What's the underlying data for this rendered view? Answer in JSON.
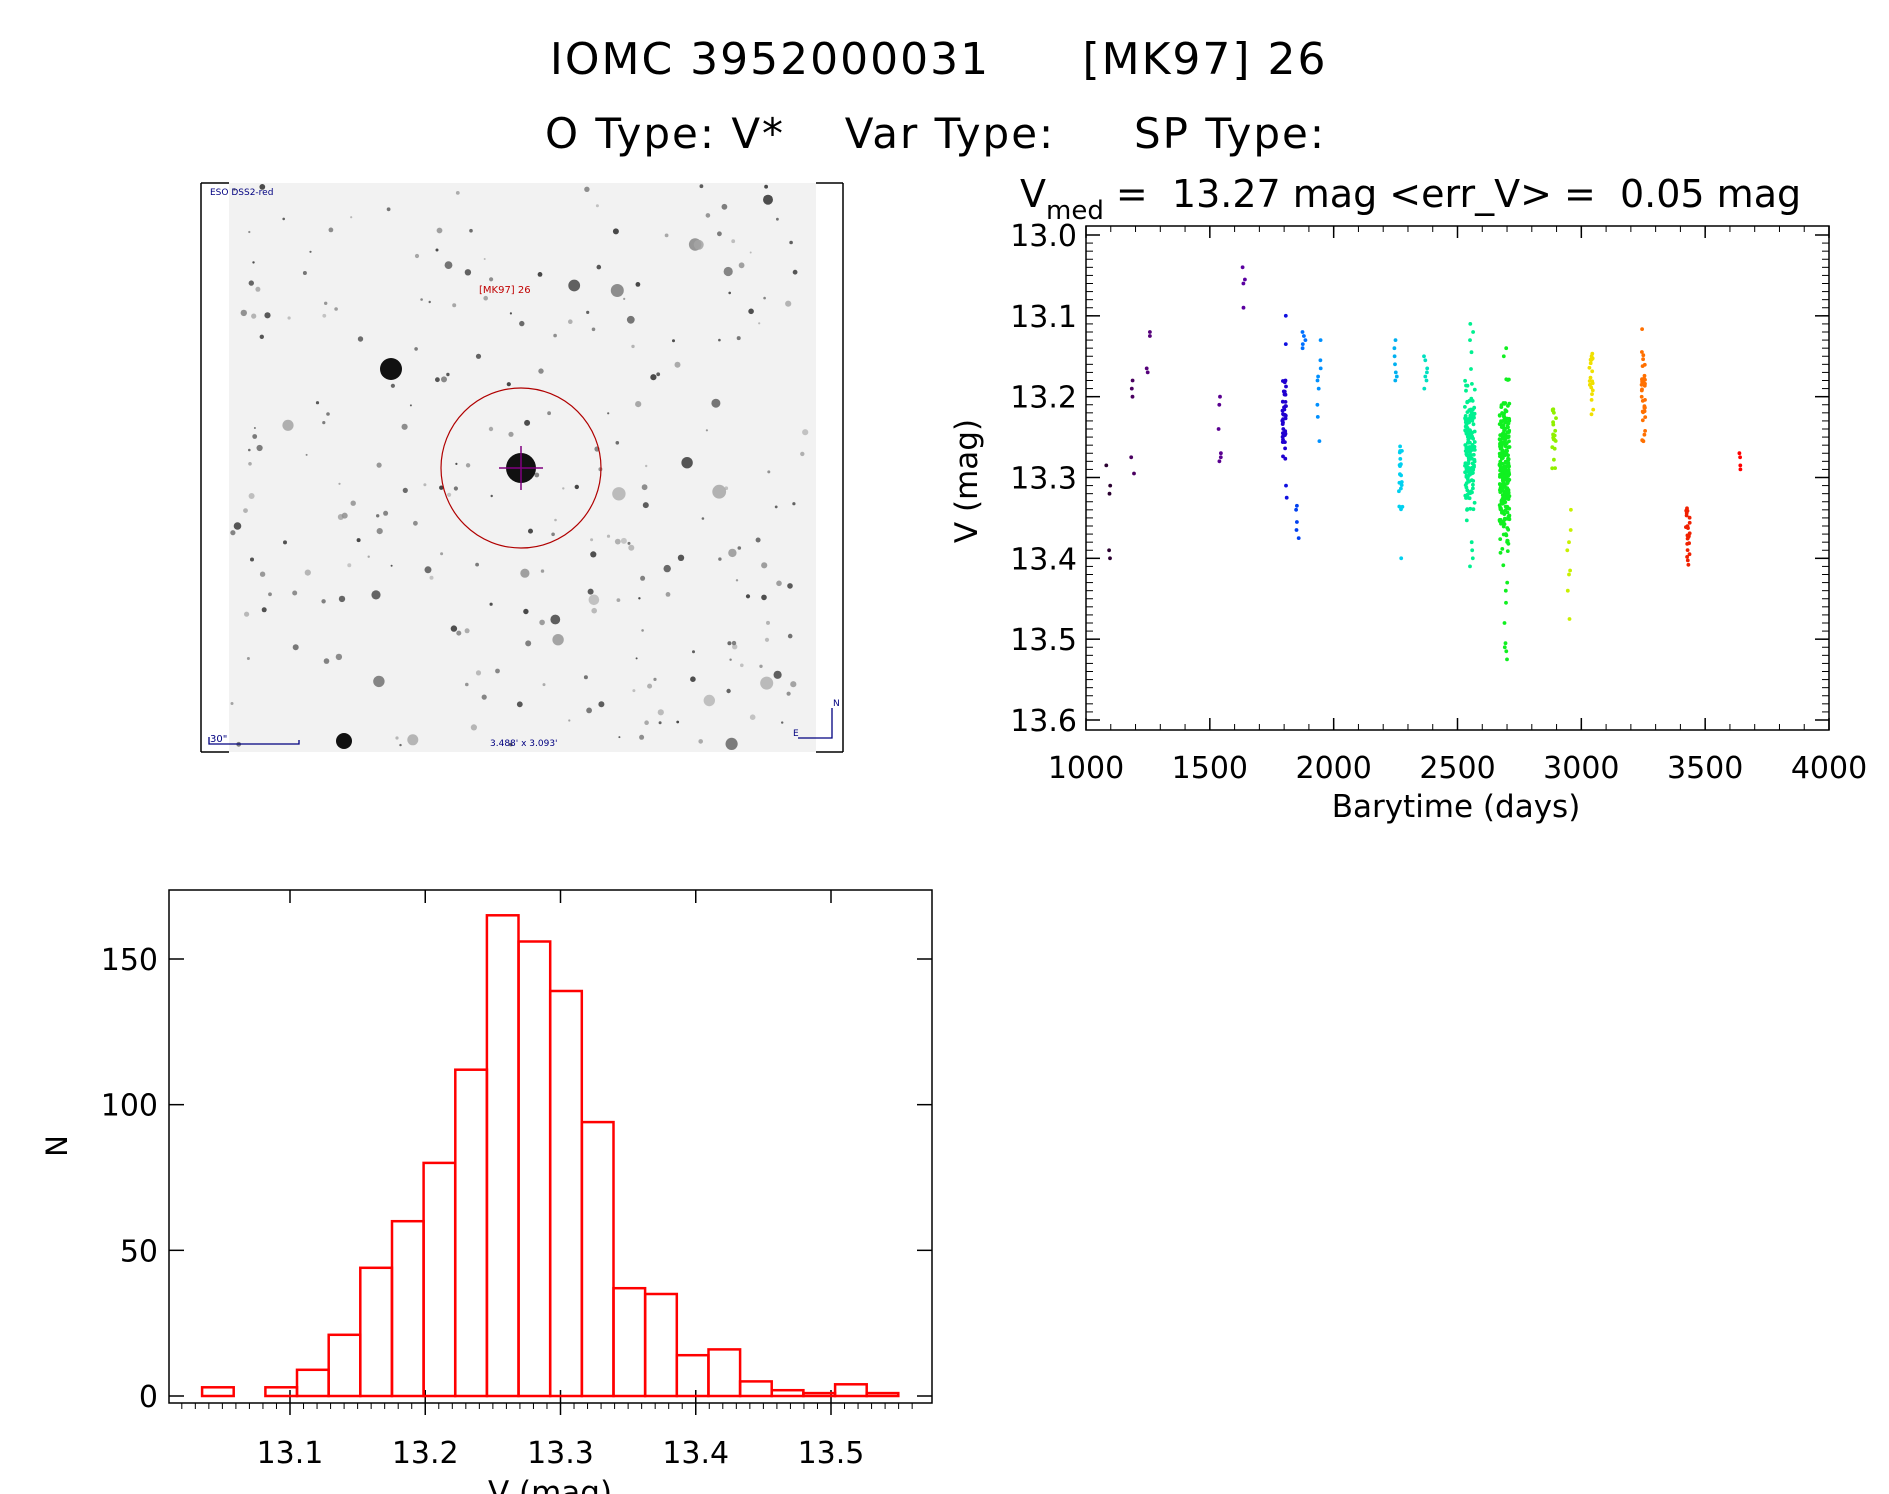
{
  "header": {
    "title_id": "IOMC 3952000031",
    "title_alias": "[MK97] 26",
    "otype": "O Type: V*",
    "vartype": "Var Type:",
    "sptype": "SP Type:"
  },
  "image_panel": {
    "survey": "ESO DSS2-red",
    "target_label": "[MK97] 26",
    "scale_label": "30\"",
    "fov_label": "3.488' x 3.093'",
    "north": "N",
    "east": "E",
    "colors": {
      "circle": "#b00000",
      "cross": "#800080",
      "text": "#000080"
    }
  },
  "chart_data": [
    {
      "type": "scatter",
      "title_prefix": "V",
      "title_sub": "med",
      "title_rest": " =  13.27 mag <err_V> =  0.05 mag",
      "xlabel": "Barytime (days)",
      "ylabel": "V (mag)",
      "xlim": [
        1000,
        4000
      ],
      "ylim": [
        13.6,
        13.0
      ],
      "xticks": [
        "1000",
        "1500",
        "2000",
        "2500",
        "3000",
        "3500",
        "4000"
      ],
      "yticks": [
        "13.0",
        "13.1",
        "13.2",
        "13.3",
        "13.4",
        "13.5",
        "13.6"
      ],
      "clusters": [
        {
          "x": 1090,
          "color": "#2a0030",
          "y": [
            13.285,
            13.31,
            13.32,
            13.39,
            13.4
          ]
        },
        {
          "x": 1190,
          "color": "#4a0060",
          "y": [
            13.18,
            13.19,
            13.2,
            13.275,
            13.295
          ]
        },
        {
          "x": 1250,
          "color": "#55007a",
          "y": [
            13.12,
            13.125,
            13.165,
            13.17
          ]
        },
        {
          "x": 1540,
          "color": "#5a0090",
          "y": [
            13.2,
            13.21,
            13.24,
            13.27,
            13.275,
            13.28
          ]
        },
        {
          "x": 1640,
          "color": "#5a00a0",
          "y": [
            13.04,
            13.055,
            13.06,
            13.09
          ]
        },
        {
          "x": 1800,
          "color": "#2000d0",
          "ymin": 13.16,
          "ymax": 13.29,
          "n": 40
        },
        {
          "x": 1810,
          "color": "#1010e0",
          "y": [
            13.1,
            13.135,
            13.31,
            13.325
          ]
        },
        {
          "x": 1855,
          "color": "#0040f0",
          "y": [
            13.335,
            13.34,
            13.355,
            13.365,
            13.375
          ]
        },
        {
          "x": 1880,
          "color": "#0070ff",
          "y": [
            13.12,
            13.125,
            13.13,
            13.135,
            13.14
          ]
        },
        {
          "x": 1940,
          "color": "#0090ff",
          "y": [
            13.13,
            13.155,
            13.165,
            13.175,
            13.18,
            13.19,
            13.21,
            13.225,
            13.255
          ]
        },
        {
          "x": 2250,
          "color": "#00b0f0",
          "y": [
            13.13,
            13.14,
            13.15,
            13.16,
            13.17,
            13.175,
            13.18
          ]
        },
        {
          "x": 2270,
          "color": "#00d0f0",
          "ymin": 13.23,
          "ymax": 13.36,
          "n": 18
        },
        {
          "x": 2275,
          "color": "#00d0f0",
          "y": [
            13.4
          ]
        },
        {
          "x": 2370,
          "color": "#00e0c0",
          "y": [
            13.15,
            13.155,
            13.165,
            13.17,
            13.175,
            13.18,
            13.19
          ]
        },
        {
          "x": 2550,
          "color": "#00f090",
          "ymin": 13.15,
          "ymax": 13.37,
          "n": 170
        },
        {
          "x": 2555,
          "color": "#00f090",
          "y": [
            13.11,
            13.12,
            13.13,
            13.145,
            13.38,
            13.39,
            13.4,
            13.41
          ]
        },
        {
          "x": 2690,
          "color": "#10f020",
          "ymin": 13.16,
          "ymax": 13.42,
          "n": 260
        },
        {
          "x": 2695,
          "color": "#10f020",
          "y": [
            13.14,
            13.15,
            13.43,
            13.44,
            13.455,
            13.48,
            13.505,
            13.51,
            13.515,
            13.525
          ]
        },
        {
          "x": 2890,
          "color": "#90f000",
          "ymin": 13.17,
          "ymax": 13.31,
          "n": 20
        },
        {
          "x": 2950,
          "color": "#c8f000",
          "y": [
            13.34,
            13.365,
            13.38,
            13.39,
            13.415,
            13.42,
            13.44,
            13.475
          ]
        },
        {
          "x": 3040,
          "color": "#f0e000",
          "ymin": 13.11,
          "ymax": 13.23,
          "n": 22
        },
        {
          "x": 3250,
          "color": "#ff7000",
          "ymin": 13.1,
          "ymax": 13.29,
          "n": 35
        },
        {
          "x": 3430,
          "color": "#f02000",
          "ymin": 13.3,
          "ymax": 13.45,
          "n": 22
        },
        {
          "x": 3640,
          "color": "#ff0000",
          "y": [
            13.27,
            13.275,
            13.285,
            13.29
          ]
        }
      ]
    },
    {
      "type": "bar",
      "style": "histogram-step",
      "xlabel": "V (mag)",
      "ylabel": "N",
      "xlim": [
        13.017,
        13.57
      ],
      "ylim": [
        0,
        170
      ],
      "xticks": [
        "13.1",
        "13.2",
        "13.3",
        "13.4",
        "13.5"
      ],
      "yticks": [
        "0",
        "50",
        "100",
        "150"
      ],
      "bin_start": 13.035,
      "bin_width": 0.0234,
      "values": [
        3,
        0,
        3,
        9,
        21,
        44,
        60,
        80,
        112,
        165,
        156,
        139,
        94,
        37,
        35,
        14,
        16,
        5,
        2,
        1,
        4,
        1
      ],
      "color": "#ff0000"
    }
  ]
}
